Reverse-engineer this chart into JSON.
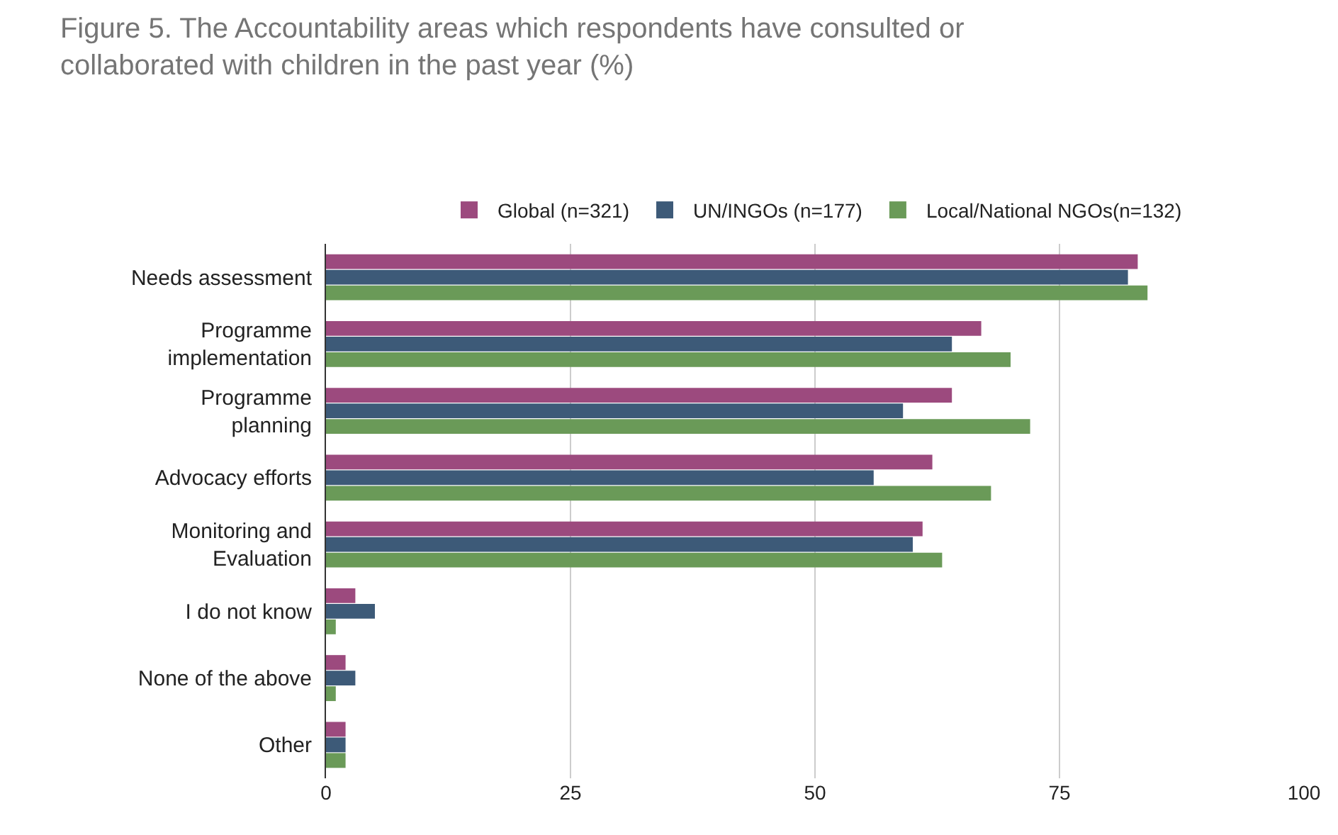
{
  "chart_data": {
    "type": "bar",
    "orientation": "horizontal",
    "title": "Figure 5. The Accountability areas which respondents have consulted or\ncollaborated with children in the past year (%)",
    "categories": [
      "Needs assessment",
      "Programme\nimplementation",
      "Programme\nplanning",
      "Advocacy efforts",
      "Monitoring and\nEvaluation",
      "I do not know",
      "None of the above",
      "Other"
    ],
    "series": [
      {
        "name": "Global (n=321)",
        "color": "#9c4a7e",
        "values": [
          83,
          67,
          64,
          62,
          61,
          3,
          2,
          2
        ]
      },
      {
        "name": "UN/INGOs (n=177)",
        "color": "#3d5a78",
        "values": [
          82,
          64,
          59,
          56,
          60,
          5,
          3,
          2
        ]
      },
      {
        "name": "Local/National NGOs(n=132)",
        "color": "#6a9a58",
        "values": [
          84,
          70,
          72,
          68,
          63,
          1,
          1,
          2
        ]
      }
    ],
    "xlim": [
      0,
      100
    ],
    "xticks": [
      0,
      25,
      50,
      75,
      100
    ],
    "grid": "x",
    "legend": "top"
  }
}
